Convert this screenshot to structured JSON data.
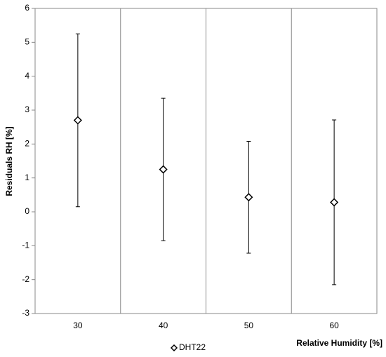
{
  "chart_data": {
    "type": "errorbar",
    "categories": [
      "30",
      "40",
      "50",
      "60"
    ],
    "series": [
      {
        "name": "DHT22",
        "color": "#000000",
        "values": [
          2.7,
          1.25,
          0.43,
          0.28
        ],
        "errors": [
          2.55,
          2.1,
          1.65,
          2.43
        ]
      }
    ],
    "ylim": [
      -3,
      6
    ],
    "yticks": [
      -3,
      -2,
      -1,
      0,
      1,
      2,
      3,
      4,
      5,
      6
    ],
    "xlabel": "Relative Humidity [%]",
    "ylabel": "Residuals RH [%]",
    "grid": true,
    "legend": "bottom"
  }
}
